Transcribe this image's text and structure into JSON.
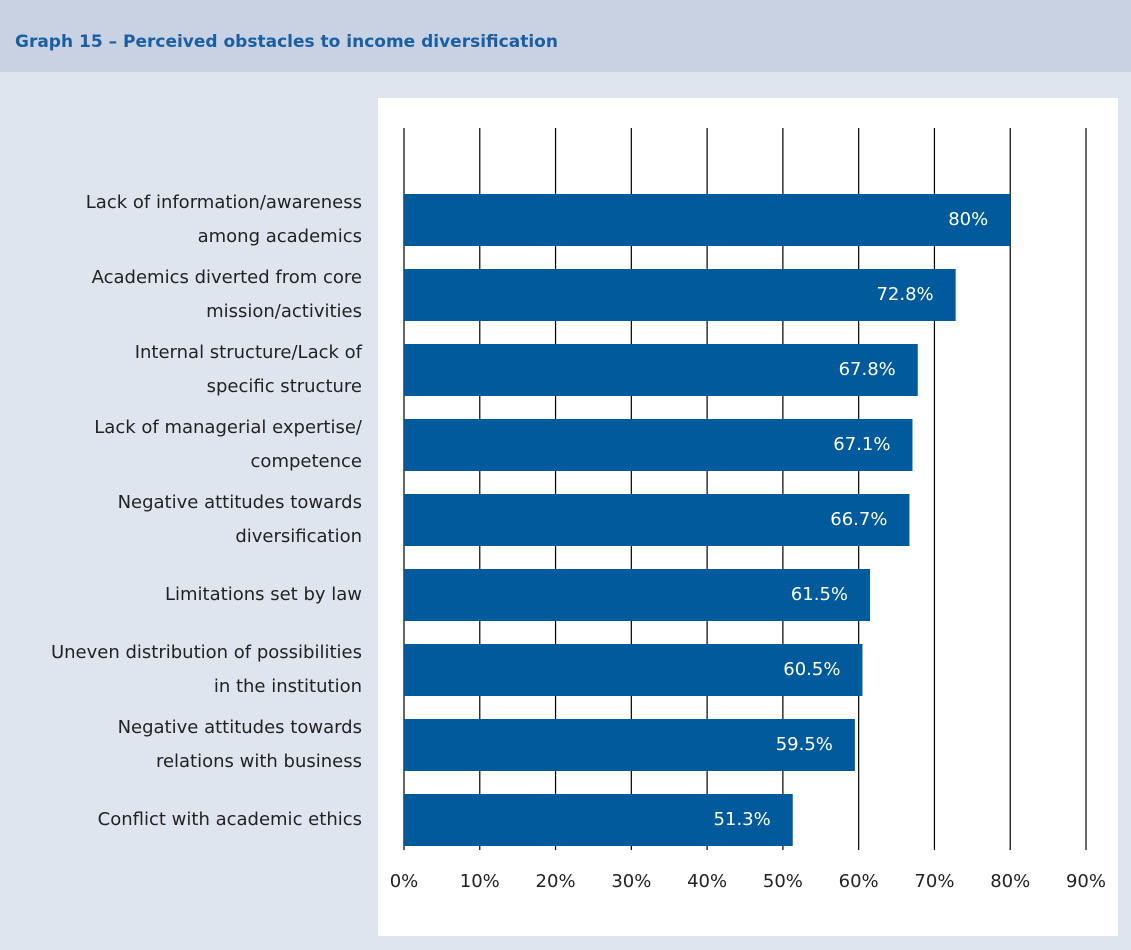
{
  "chart_data": {
    "type": "barh",
    "title": "Graph 15 – Perceived obstacles to income diversification",
    "categories": [
      "Lack of information/awareness\namong academics",
      "Academics diverted from core\nmission/activities",
      "Internal structure/Lack of\nspecific structure",
      "Lack of managerial expertise/\ncompetence",
      "Negative attitudes towards\ndiversification",
      "Limitations set by law",
      "Uneven distribution of possibilities\nin the institution",
      "Negative attitudes towards\nrelations with business",
      "Conflict with academic ethics"
    ],
    "values": [
      80,
      72.8,
      67.8,
      67.1,
      66.7,
      61.5,
      60.5,
      59.5,
      51.3
    ],
    "value_labels": [
      "80%",
      "72.8%",
      "67.8%",
      "67.1%",
      "66.7%",
      "61.5%",
      "60.5%",
      "59.5%",
      "51.3%"
    ],
    "color": "#005a9c",
    "xlim": [
      0,
      90
    ],
    "xticks": [
      {
        "value": 0,
        "label": "0%"
      },
      {
        "value": 10,
        "label": "10%"
      },
      {
        "value": 20,
        "label": "20%"
      },
      {
        "value": 30,
        "label": "30%"
      },
      {
        "value": 40,
        "label": "40%"
      },
      {
        "value": 50,
        "label": "50%"
      },
      {
        "value": 60,
        "label": "60%"
      },
      {
        "value": 70,
        "label": "70%"
      },
      {
        "value": 80,
        "label": "80%"
      },
      {
        "value": 90,
        "label": "90%"
      }
    ],
    "grid": true
  }
}
